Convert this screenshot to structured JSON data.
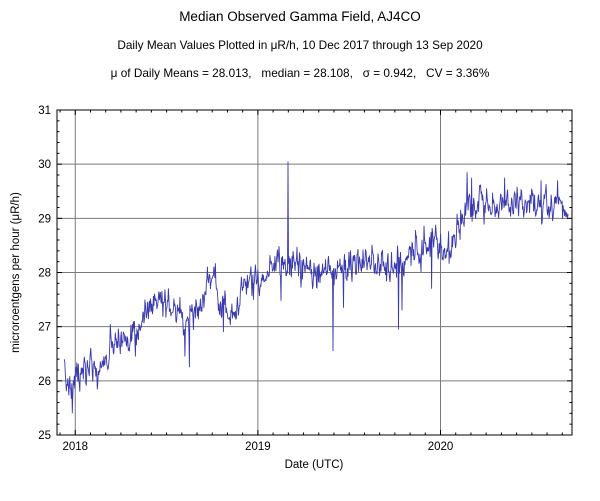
{
  "chart_data": {
    "type": "line",
    "title": "Median Observed Gamma Field, AJ4CO",
    "subtitle": "Daily Mean Values Plotted in μR/h, 10 Dec 2017 through 13 Sep 2020",
    "stats_line": "μ of Daily Means = 28.013,   median = 28.108,   σ = 0.942,   CV = 3.36%",
    "stats": {
      "mu_of_daily_means": 28.013,
      "median": 28.108,
      "sigma": 0.942,
      "cv_percent": 3.36
    },
    "xlabel": "Date (UTC)",
    "ylabel": "microroentgens per hour (μR/h)",
    "xlim": [
      2017.9,
      2020.72
    ],
    "ylim": [
      25,
      31
    ],
    "x_ticks": [
      {
        "value": 2018,
        "label": "2018"
      },
      {
        "value": 2019,
        "label": "2019"
      },
      {
        "value": 2020,
        "label": "2020"
      }
    ],
    "y_ticks": [
      25,
      26,
      27,
      28,
      29,
      30,
      31
    ],
    "x_grid": [
      2018,
      2019,
      2020
    ],
    "y_grid": [
      26,
      27,
      28,
      29,
      30
    ],
    "grid": true,
    "legend": "none",
    "line_color": "#3a3aae",
    "grid_color": "#7a7a7a",
    "frame_color": "#000000",
    "x_start": 2017.94,
    "x_end": 2020.7,
    "samples_per_year": 365,
    "noise_sigma": 0.145,
    "noise_ar": 0.5,
    "seed": 7,
    "trend": [
      [
        2017.94,
        26.0
      ],
      [
        2017.96,
        25.85
      ],
      [
        2017.99,
        25.85
      ],
      [
        2018.01,
        26.05
      ],
      [
        2018.04,
        26.15
      ],
      [
        2018.08,
        26.3
      ],
      [
        2018.12,
        26.15
      ],
      [
        2018.16,
        26.35
      ],
      [
        2018.2,
        26.55
      ],
      [
        2018.24,
        26.75
      ],
      [
        2018.28,
        26.9
      ],
      [
        2018.32,
        26.75
      ],
      [
        2018.36,
        27.1
      ],
      [
        2018.4,
        27.3
      ],
      [
        2018.44,
        27.55
      ],
      [
        2018.48,
        27.5
      ],
      [
        2018.52,
        27.45
      ],
      [
        2018.56,
        27.4
      ],
      [
        2018.6,
        27.0
      ],
      [
        2018.64,
        27.25
      ],
      [
        2018.68,
        27.55
      ],
      [
        2018.72,
        27.7
      ],
      [
        2018.76,
        27.8
      ],
      [
        2018.8,
        27.55
      ],
      [
        2018.84,
        27.25
      ],
      [
        2018.88,
        27.45
      ],
      [
        2018.92,
        27.8
      ],
      [
        2018.96,
        27.9
      ],
      [
        2019.0,
        28.0
      ],
      [
        2019.08,
        28.1
      ],
      [
        2019.16,
        28.15
      ],
      [
        2019.24,
        28.2
      ],
      [
        2019.32,
        28.1
      ],
      [
        2019.4,
        28.05
      ],
      [
        2019.48,
        28.15
      ],
      [
        2019.56,
        28.2
      ],
      [
        2019.64,
        28.15
      ],
      [
        2019.72,
        28.1
      ],
      [
        2019.8,
        28.15
      ],
      [
        2019.88,
        28.35
      ],
      [
        2019.94,
        28.5
      ],
      [
        2020.0,
        28.45
      ],
      [
        2020.06,
        28.55
      ],
      [
        2020.1,
        28.85
      ],
      [
        2020.14,
        29.2
      ],
      [
        2020.18,
        29.3
      ],
      [
        2020.25,
        29.25
      ],
      [
        2020.32,
        29.3
      ],
      [
        2020.4,
        29.25
      ],
      [
        2020.48,
        29.35
      ],
      [
        2020.56,
        29.3
      ],
      [
        2020.64,
        29.3
      ],
      [
        2020.7,
        29.2
      ]
    ],
    "spikes": [
      [
        2017.985,
        25.4
      ],
      [
        2018.025,
        25.8
      ],
      [
        2018.33,
        26.45
      ],
      [
        2018.6,
        26.45
      ],
      [
        2018.625,
        26.25
      ],
      [
        2018.81,
        26.9
      ],
      [
        2019.165,
        30.05
      ],
      [
        2019.41,
        26.55
      ],
      [
        2019.47,
        27.35
      ],
      [
        2019.77,
        26.95
      ],
      [
        2019.79,
        27.3
      ],
      [
        2019.95,
        27.7
      ],
      [
        2020.145,
        29.85
      ],
      [
        2020.17,
        29.75
      ],
      [
        2020.35,
        29.75
      ],
      [
        2020.55,
        29.7
      ]
    ]
  }
}
